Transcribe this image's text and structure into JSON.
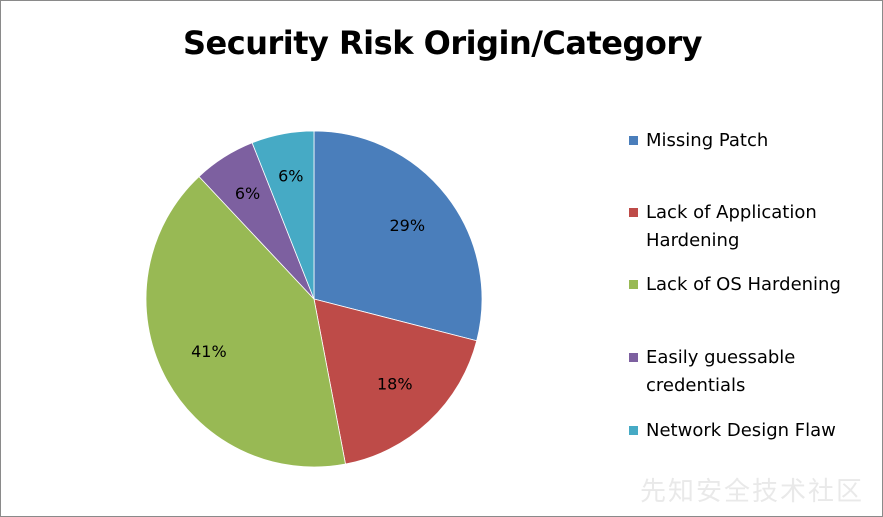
{
  "chart_data": {
    "type": "pie",
    "title": "Security Risk Origin/Category",
    "categories": [
      "Missing Patch",
      "Lack of Application Hardening",
      "Lack of OS Hardening",
      "Easily guessable credentials",
      "Network Design Flaw"
    ],
    "values": [
      29,
      18,
      41,
      6,
      6
    ],
    "labels": [
      "29%",
      "18%",
      "41%",
      "6%",
      "6%"
    ],
    "colors": [
      "#4a7ebb",
      "#be4b48",
      "#98b954",
      "#7d60a0",
      "#46aac5"
    ],
    "legend_position": "right"
  },
  "watermark": "先知安全技术社区"
}
